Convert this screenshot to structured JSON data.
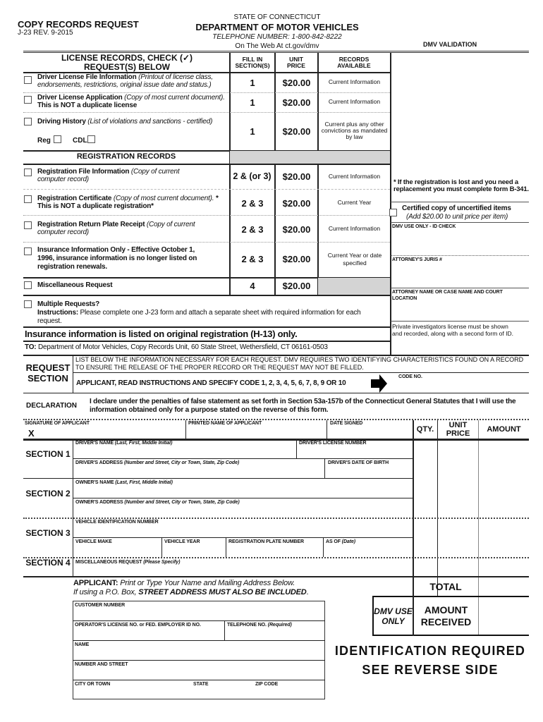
{
  "header": {
    "title": "COPY RECORDS REQUEST",
    "form_number": "J-23 REV. 9-2015",
    "state": "STATE OF CONNECTICUT",
    "department": "DEPARTMENT OF MOTOR VEHICLES",
    "telephone": "TELEPHONE NUMBER:  1-800-842-8222",
    "web": "On The Web At ct.gov/dmv",
    "validation": "DMV  VALIDATION"
  },
  "table": {
    "headers": {
      "license_records": "LICENSE RECORDS, CHECK (✓)",
      "license_records_2": "REQUEST(S) BELOW",
      "fill_in": "FILL IN SECTION(S)",
      "unit_price": "UNIT PRICE",
      "records_available": "RECORDS AVAILABLE"
    },
    "license_rows": [
      {
        "title": "Driver License File Information",
        "desc": " (Printout of license class, endorsements, restrictions, original issue date and status.)",
        "extra": "",
        "section": "1",
        "price": "$20.00",
        "records": "Current Information"
      },
      {
        "title": "Driver License Application",
        "desc": " (Copy of most current document).",
        "extra": "  This is NOT a duplicate license",
        "section": "1",
        "price": "$20.00",
        "records": "Current Information"
      },
      {
        "title": "Driving History",
        "desc": " (List of violations and sanctions - certified)",
        "extra": "",
        "section": "1",
        "price": "$20.00",
        "records": "Current plus any other convictions as mandated by law"
      }
    ],
    "reg_label": "Reg",
    "cdl_label": "CDL",
    "registration_header": "REGISTRATION RECORDS",
    "registration_rows": [
      {
        "title": "Registration File Information",
        "desc": " (Copy of current computer record)",
        "extra": "",
        "section": "2 & (or 3)",
        "price": "$20.00",
        "records": "Current Information"
      },
      {
        "title": "Registration Certificate",
        "desc": " (Copy of most current document).",
        "extra": "  * This is NOT a duplicate registration*",
        "section": "2 & 3",
        "price": "$20.00",
        "records": "Current Year"
      },
      {
        "title": "Registration Return Plate Receipt",
        "desc": " (Copy of current computer record)",
        "extra": "",
        "section": "2 & 3",
        "price": "$20.00",
        "records": "Current Information"
      },
      {
        "title": "Insurance Information Only - Effective October 1, 1996, insurance information is no longer listed on registration renewals.",
        "desc": "",
        "extra": "",
        "section": "2 & 3",
        "price": "$20.00",
        "records": "Current Year or date specified"
      },
      {
        "title": "Miscellaneous Request",
        "desc": "",
        "extra": "",
        "section": "4",
        "price": "$20.00",
        "records": ""
      }
    ],
    "multiple_title": "Multiple Requests?",
    "instructions_label": "Instructions:",
    "instructions_text": "  Please complete one J-23 form and attach a separate sheet with required information for each request.",
    "insurance_note": "Insurance information is listed on original registration (H-13) only.",
    "to_label": "TO:",
    "to_text": "  Department of Motor Vehicles, Copy Records Unit, 60 State Street, Wethersfield, CT 06161-0503"
  },
  "right_panel": {
    "lost_note": "* If the registration is lost and you need a replacement you must complete form B-341.",
    "certified_title": "Certified copy of uncertified items",
    "certified_note": "(Add $20.00 to unit price per item)",
    "id_check": "DMV USE ONLY - ID CHECK",
    "juris": "ATTORNEY'S JURIS #",
    "attorney_name": "ATTORNEY NAME OR CASE NAME AND COURT LOCATION",
    "investigators": "Private investigators license must be shown and recorded, along with a second form of ID."
  },
  "request_section": {
    "label": "REQUEST SECTION",
    "info": "LIST BELOW THE INFORMATION NECESSARY FOR EACH REQUEST.  DMV REQUIRES TWO IDENTIFYING CHARACTERISTICS FOUND ON A RECORD TO ENSURE THE RELEASE OF THE PROPER RECORD OR THE REQUEST MAY NOT BE FILLED.",
    "code_instruction": "APPLICANT, READ INSTRUCTIONS AND SPECIFY CODE 1, 2, 3, 4, 5, 6, 7, 8, 9 OR 10",
    "code_no": "CODE NO."
  },
  "declaration": {
    "label": "DECLARATION",
    "text": "I declare under the penalties of false statement as set forth in Section 53a-157b of the Connecticut General Statutes that I will use the information obtained only for a purpose stated on the reverse of this form."
  },
  "signature": {
    "signature_label": "SIGNATURE OF APPLICANT",
    "x_mark": "X",
    "printed_name": "PRINTED NAME OF APPLICANT",
    "date_signed": "DATE SIGNED",
    "qty": "QTY.",
    "unit_price": "UNIT PRICE",
    "amount": "AMOUNT"
  },
  "sections": {
    "s1": "SECTION 1",
    "s2": "SECTION 2",
    "s3": "SECTION 3",
    "s4": "SECTION 4",
    "drivers_name": "DRIVER'S NAME",
    "drivers_name_hint": " (Last, First, Middle Initial)",
    "drivers_license": "DRIVER'S LICENSE NUMBER",
    "drivers_address": "DRIVER'S ADDRESS",
    "address_hint": " (Number and Street, City or Town, State, Zip Code)",
    "drivers_dob": "DRIVER'S DATE OF BIRTH",
    "owners_name": "OWNER'S NAME",
    "owners_address": "OWNER'S ADDRESS",
    "vin": "VEHICLE IDENTIFICATION NUMBER",
    "make": "VEHICLE MAKE",
    "year": "VEHICLE YEAR",
    "plate": "REGISTRATION PLATE NUMBER",
    "as_of": "AS OF",
    "as_of_hint": " (Date)",
    "misc": "MISCELLANEOUS REQUEST",
    "misc_hint": " (Please Specify)"
  },
  "applicant": {
    "label": "APPLICANT:",
    "line1": "  Print or Type Your Name and Mailing Address Below.",
    "line2a": "If using a P.O. Box, ",
    "line2b": "STREET ADDRESS MUST ALSO BE INCLUDED",
    "line2c": ".",
    "customer_number": "CUSTOMER NUMBER",
    "operator_license": "OPERATOR'S LICENSE NO. or FED.  EMPLOYER ID NO.",
    "telephone": "TELEPHONE NO.",
    "telephone_hint": " (Required)",
    "name": "NAME",
    "street": "NUMBER AND STREET",
    "city": "CITY OR TOWN",
    "state": "STATE",
    "zip": "ZIP CODE"
  },
  "totals": {
    "total": "TOTAL",
    "dmv_use_only": "DMV USE ONLY",
    "amount_received": "AMOUNT RECEIVED"
  },
  "footer": {
    "id_required": "IDENTIFICATION REQUIRED",
    "see_reverse": "SEE REVERSE SIDE"
  }
}
